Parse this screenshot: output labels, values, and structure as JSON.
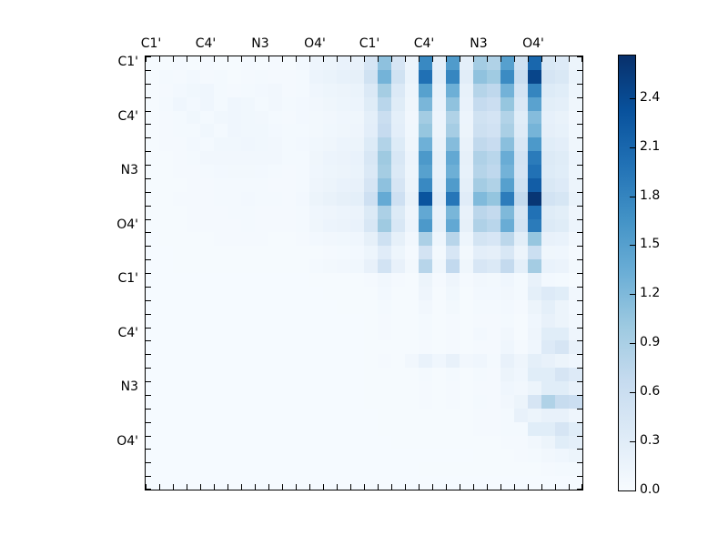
{
  "figure": {
    "background": "#ffffff"
  },
  "chart_data": {
    "type": "heatmap",
    "title": "",
    "xlabel": "",
    "ylabel": "",
    "x_tick_labels": [
      "C1'",
      "C4'",
      "N3",
      "O4'",
      "C1'",
      "C4'",
      "N3",
      "O4'"
    ],
    "y_tick_labels": [
      "C1'",
      "C4'",
      "N3",
      "O4'",
      "C1'",
      "C4'",
      "N3",
      "O4'"
    ],
    "ticks_per_label_group": 4,
    "n_rows": 32,
    "n_cols": 32,
    "vmin": 0.0,
    "vmax": 2.66,
    "grid": false,
    "colormap": {
      "name": "Blues",
      "stops": [
        "#f7fbff",
        "#deebf7",
        "#c6dbef",
        "#9ecae1",
        "#6baed6",
        "#4292c6",
        "#2171b5",
        "#08519c",
        "#08306b"
      ]
    },
    "colorbar": {
      "position": "right",
      "tick_labels": [
        "0.0",
        "0.3",
        "0.6",
        "0.9",
        "1.2",
        "1.5",
        "1.8",
        "2.1",
        "2.4"
      ],
      "tick_values": [
        0.0,
        0.3,
        0.6,
        0.9,
        1.2,
        1.5,
        1.8,
        2.1,
        2.4
      ]
    },
    "values": [
      [
        0.03,
        0.03,
        0.04,
        0.03,
        0.04,
        0.03,
        0.03,
        0.04,
        0.03,
        0.04,
        0.03,
        0.06,
        0.12,
        0.15,
        0.18,
        0.2,
        0.45,
        1.1,
        0.45,
        0.15,
        1.75,
        0.25,
        1.55,
        0.25,
        0.95,
        0.85,
        1.5,
        0.55,
        2.1,
        0.4,
        0.35,
        0.15
      ],
      [
        0.03,
        0.05,
        0.04,
        0.06,
        0.04,
        0.05,
        0.03,
        0.04,
        0.05,
        0.04,
        0.04,
        0.05,
        0.14,
        0.17,
        0.21,
        0.23,
        0.52,
        1.27,
        0.52,
        0.17,
        2.01,
        0.29,
        1.78,
        0.29,
        1.09,
        0.98,
        1.73,
        0.63,
        2.45,
        0.46,
        0.4,
        0.17
      ],
      [
        0.03,
        0.04,
        0.06,
        0.09,
        0.1,
        0.05,
        0.04,
        0.05,
        0.06,
        0.08,
        0.04,
        0.05,
        0.1,
        0.13,
        0.15,
        0.17,
        0.38,
        0.94,
        0.38,
        0.13,
        1.49,
        0.21,
        1.32,
        0.21,
        0.81,
        0.72,
        1.28,
        0.47,
        1.79,
        0.34,
        0.3,
        0.13
      ],
      [
        0.03,
        0.05,
        0.1,
        0.06,
        0.1,
        0.05,
        0.1,
        0.09,
        0.05,
        0.08,
        0.05,
        0.06,
        0.08,
        0.11,
        0.13,
        0.14,
        0.32,
        0.77,
        0.32,
        0.11,
        1.23,
        0.18,
        1.09,
        0.18,
        0.67,
        0.6,
        1.05,
        0.39,
        1.47,
        0.28,
        0.25,
        0.11
      ],
      [
        0.03,
        0.04,
        0.05,
        0.09,
        0.05,
        0.09,
        0.1,
        0.09,
        0.08,
        0.05,
        0.04,
        0.06,
        0.07,
        0.08,
        0.1,
        0.11,
        0.25,
        0.61,
        0.25,
        0.08,
        0.96,
        0.14,
        0.85,
        0.14,
        0.52,
        0.47,
        0.83,
        0.3,
        1.16,
        0.22,
        0.19,
        0.08
      ],
      [
        0.03,
        0.04,
        0.05,
        0.05,
        0.09,
        0.05,
        0.1,
        0.09,
        0.09,
        0.06,
        0.05,
        0.05,
        0.07,
        0.09,
        0.11,
        0.12,
        0.27,
        0.66,
        0.27,
        0.09,
        1.05,
        0.15,
        0.93,
        0.15,
        0.57,
        0.51,
        0.9,
        0.33,
        1.26,
        0.24,
        0.21,
        0.09
      ],
      [
        0.03,
        0.04,
        0.04,
        0.06,
        0.05,
        0.09,
        0.09,
        0.1,
        0.09,
        0.08,
        0.05,
        0.06,
        0.09,
        0.11,
        0.14,
        0.15,
        0.34,
        0.83,
        0.34,
        0.11,
        1.31,
        0.19,
        1.16,
        0.19,
        0.71,
        0.64,
        1.13,
        0.41,
        1.58,
        0.3,
        0.26,
        0.11
      ],
      [
        0.03,
        0.03,
        0.04,
        0.05,
        0.08,
        0.08,
        0.08,
        0.08,
        0.08,
        0.08,
        0.05,
        0.05,
        0.11,
        0.14,
        0.16,
        0.18,
        0.41,
        0.99,
        0.41,
        0.14,
        1.58,
        0.23,
        1.4,
        0.23,
        0.86,
        0.77,
        1.35,
        0.5,
        1.89,
        0.36,
        0.32,
        0.14
      ],
      [
        0.03,
        0.03,
        0.04,
        0.04,
        0.05,
        0.06,
        0.07,
        0.07,
        0.06,
        0.05,
        0.04,
        0.05,
        0.1,
        0.13,
        0.15,
        0.17,
        0.38,
        0.94,
        0.38,
        0.13,
        1.49,
        0.21,
        1.32,
        0.21,
        0.81,
        0.72,
        1.28,
        0.47,
        2.0,
        0.34,
        0.3,
        0.13
      ],
      [
        0.03,
        0.03,
        0.03,
        0.04,
        0.04,
        0.05,
        0.05,
        0.05,
        0.05,
        0.04,
        0.04,
        0.05,
        0.12,
        0.15,
        0.18,
        0.2,
        0.45,
        1.1,
        0.45,
        0.15,
        1.75,
        0.25,
        1.55,
        0.25,
        0.95,
        0.85,
        1.5,
        0.55,
        2.2,
        0.4,
        0.35,
        0.15
      ],
      [
        0.03,
        0.03,
        0.04,
        0.04,
        0.04,
        0.05,
        0.05,
        0.06,
        0.05,
        0.05,
        0.04,
        0.06,
        0.15,
        0.19,
        0.23,
        0.25,
        0.56,
        1.38,
        0.56,
        0.19,
        2.3,
        0.31,
        1.94,
        0.31,
        1.19,
        1.06,
        1.88,
        0.69,
        2.6,
        0.5,
        0.44,
        0.19
      ],
      [
        0.03,
        0.03,
        0.03,
        0.04,
        0.04,
        0.04,
        0.05,
        0.05,
        0.04,
        0.04,
        0.04,
        0.05,
        0.1,
        0.12,
        0.14,
        0.16,
        0.36,
        0.88,
        0.36,
        0.12,
        1.4,
        0.2,
        1.24,
        0.2,
        0.76,
        0.68,
        1.2,
        0.44,
        2.0,
        0.32,
        0.28,
        0.12
      ],
      [
        0.03,
        0.03,
        0.03,
        0.04,
        0.04,
        0.04,
        0.04,
        0.05,
        0.04,
        0.04,
        0.04,
        0.05,
        0.11,
        0.14,
        0.16,
        0.18,
        0.41,
        0.99,
        0.41,
        0.14,
        1.58,
        0.23,
        1.4,
        0.23,
        0.86,
        0.77,
        1.35,
        0.5,
        1.89,
        0.36,
        0.32,
        0.14
      ],
      [
        0.02,
        0.03,
        0.03,
        0.03,
        0.03,
        0.04,
        0.04,
        0.04,
        0.04,
        0.03,
        0.03,
        0.04,
        0.06,
        0.08,
        0.09,
        0.1,
        0.23,
        0.55,
        0.23,
        0.08,
        0.88,
        0.13,
        0.78,
        0.13,
        0.48,
        0.43,
        0.75,
        0.28,
        1.05,
        0.2,
        0.18,
        0.08
      ],
      [
        0.02,
        0.02,
        0.03,
        0.03,
        0.03,
        0.03,
        0.03,
        0.03,
        0.03,
        0.03,
        0.03,
        0.03,
        0.03,
        0.04,
        0.05,
        0.06,
        0.13,
        0.31,
        0.13,
        0.04,
        0.49,
        0.07,
        0.43,
        0.07,
        0.27,
        0.24,
        0.42,
        0.15,
        0.59,
        0.11,
        0.1,
        0.04
      ],
      [
        0.02,
        0.02,
        0.03,
        0.03,
        0.03,
        0.03,
        0.03,
        0.03,
        0.03,
        0.03,
        0.03,
        0.03,
        0.05,
        0.07,
        0.08,
        0.09,
        0.2,
        0.5,
        0.2,
        0.07,
        0.79,
        0.11,
        0.7,
        0.11,
        0.43,
        0.38,
        0.68,
        0.25,
        0.95,
        0.18,
        0.16,
        0.07
      ],
      [
        0.02,
        0.02,
        0.02,
        0.02,
        0.02,
        0.02,
        0.02,
        0.02,
        0.02,
        0.02,
        0.02,
        0.02,
        0.03,
        0.03,
        0.03,
        0.03,
        0.04,
        0.08,
        0.04,
        0.03,
        0.15,
        0.04,
        0.12,
        0.04,
        0.08,
        0.07,
        0.1,
        0.05,
        0.2,
        0.06,
        0.05,
        0.03
      ],
      [
        0.02,
        0.02,
        0.02,
        0.02,
        0.02,
        0.02,
        0.02,
        0.02,
        0.02,
        0.02,
        0.02,
        0.02,
        0.02,
        0.03,
        0.03,
        0.03,
        0.03,
        0.06,
        0.03,
        0.03,
        0.12,
        0.03,
        0.09,
        0.03,
        0.06,
        0.06,
        0.08,
        0.05,
        0.25,
        0.35,
        0.3,
        0.08
      ],
      [
        0.02,
        0.02,
        0.02,
        0.02,
        0.02,
        0.02,
        0.02,
        0.02,
        0.02,
        0.02,
        0.02,
        0.02,
        0.02,
        0.02,
        0.03,
        0.03,
        0.03,
        0.05,
        0.03,
        0.03,
        0.08,
        0.03,
        0.07,
        0.03,
        0.05,
        0.05,
        0.06,
        0.04,
        0.15,
        0.25,
        0.15,
        0.06
      ],
      [
        0.02,
        0.02,
        0.02,
        0.02,
        0.02,
        0.02,
        0.02,
        0.02,
        0.02,
        0.02,
        0.02,
        0.02,
        0.02,
        0.02,
        0.02,
        0.02,
        0.03,
        0.04,
        0.03,
        0.03,
        0.05,
        0.03,
        0.04,
        0.03,
        0.04,
        0.04,
        0.05,
        0.03,
        0.1,
        0.2,
        0.15,
        0.08
      ],
      [
        0.02,
        0.02,
        0.02,
        0.02,
        0.02,
        0.02,
        0.02,
        0.02,
        0.02,
        0.02,
        0.02,
        0.02,
        0.02,
        0.02,
        0.02,
        0.02,
        0.03,
        0.04,
        0.03,
        0.03,
        0.05,
        0.03,
        0.04,
        0.03,
        0.06,
        0.04,
        0.08,
        0.03,
        0.12,
        0.3,
        0.3,
        0.12
      ],
      [
        0.02,
        0.02,
        0.02,
        0.02,
        0.02,
        0.02,
        0.02,
        0.02,
        0.02,
        0.02,
        0.02,
        0.02,
        0.02,
        0.02,
        0.02,
        0.02,
        0.03,
        0.03,
        0.03,
        0.03,
        0.04,
        0.03,
        0.04,
        0.03,
        0.04,
        0.04,
        0.1,
        0.04,
        0.1,
        0.35,
        0.45,
        0.2
      ],
      [
        0.02,
        0.02,
        0.02,
        0.02,
        0.02,
        0.02,
        0.02,
        0.02,
        0.02,
        0.02,
        0.02,
        0.02,
        0.02,
        0.02,
        0.02,
        0.02,
        0.03,
        0.04,
        0.03,
        0.08,
        0.18,
        0.1,
        0.2,
        0.08,
        0.1,
        0.05,
        0.2,
        0.12,
        0.25,
        0.2,
        0.15,
        0.1
      ],
      [
        0.02,
        0.02,
        0.02,
        0.02,
        0.02,
        0.02,
        0.02,
        0.02,
        0.02,
        0.02,
        0.02,
        0.02,
        0.02,
        0.02,
        0.02,
        0.02,
        0.03,
        0.03,
        0.03,
        0.03,
        0.05,
        0.03,
        0.05,
        0.03,
        0.05,
        0.04,
        0.15,
        0.1,
        0.3,
        0.3,
        0.45,
        0.35
      ],
      [
        0.02,
        0.02,
        0.02,
        0.02,
        0.02,
        0.02,
        0.02,
        0.02,
        0.02,
        0.02,
        0.02,
        0.02,
        0.02,
        0.02,
        0.02,
        0.02,
        0.03,
        0.03,
        0.03,
        0.03,
        0.04,
        0.03,
        0.04,
        0.03,
        0.04,
        0.04,
        0.1,
        0.08,
        0.15,
        0.3,
        0.3,
        0.2
      ],
      [
        0.02,
        0.02,
        0.02,
        0.02,
        0.02,
        0.02,
        0.02,
        0.02,
        0.02,
        0.02,
        0.02,
        0.02,
        0.02,
        0.02,
        0.02,
        0.02,
        0.03,
        0.03,
        0.03,
        0.03,
        0.04,
        0.03,
        0.04,
        0.03,
        0.05,
        0.04,
        0.08,
        0.15,
        0.45,
        0.85,
        0.65,
        0.6
      ],
      [
        0.02,
        0.02,
        0.02,
        0.02,
        0.02,
        0.02,
        0.02,
        0.02,
        0.02,
        0.02,
        0.02,
        0.02,
        0.02,
        0.02,
        0.02,
        0.02,
        0.02,
        0.03,
        0.03,
        0.03,
        0.03,
        0.03,
        0.03,
        0.03,
        0.04,
        0.04,
        0.05,
        0.2,
        0.15,
        0.2,
        0.2,
        0.12
      ],
      [
        0.02,
        0.02,
        0.02,
        0.02,
        0.02,
        0.02,
        0.02,
        0.02,
        0.02,
        0.02,
        0.02,
        0.02,
        0.02,
        0.02,
        0.02,
        0.02,
        0.02,
        0.03,
        0.03,
        0.03,
        0.03,
        0.03,
        0.03,
        0.03,
        0.04,
        0.04,
        0.05,
        0.05,
        0.3,
        0.3,
        0.45,
        0.3
      ],
      [
        0.02,
        0.02,
        0.02,
        0.02,
        0.02,
        0.02,
        0.02,
        0.02,
        0.02,
        0.02,
        0.02,
        0.02,
        0.02,
        0.02,
        0.02,
        0.02,
        0.02,
        0.02,
        0.03,
        0.03,
        0.03,
        0.03,
        0.03,
        0.03,
        0.03,
        0.03,
        0.04,
        0.04,
        0.08,
        0.15,
        0.3,
        0.25
      ],
      [
        0.02,
        0.02,
        0.02,
        0.02,
        0.02,
        0.02,
        0.02,
        0.02,
        0.02,
        0.02,
        0.02,
        0.02,
        0.02,
        0.02,
        0.02,
        0.02,
        0.02,
        0.02,
        0.02,
        0.02,
        0.02,
        0.02,
        0.02,
        0.02,
        0.03,
        0.03,
        0.03,
        0.04,
        0.05,
        0.08,
        0.1,
        0.15
      ],
      [
        0.02,
        0.02,
        0.02,
        0.02,
        0.02,
        0.02,
        0.02,
        0.02,
        0.02,
        0.02,
        0.02,
        0.02,
        0.02,
        0.02,
        0.02,
        0.02,
        0.02,
        0.02,
        0.02,
        0.02,
        0.03,
        0.03,
        0.03,
        0.03,
        0.03,
        0.03,
        0.03,
        0.03,
        0.03,
        0.04,
        0.05,
        0.05
      ],
      [
        0.02,
        0.02,
        0.02,
        0.02,
        0.02,
        0.02,
        0.02,
        0.02,
        0.02,
        0.02,
        0.02,
        0.02,
        0.02,
        0.02,
        0.02,
        0.02,
        0.02,
        0.02,
        0.02,
        0.02,
        0.02,
        0.02,
        0.02,
        0.02,
        0.02,
        0.02,
        0.02,
        0.02,
        0.02,
        0.02,
        0.02,
        0.02
      ]
    ]
  }
}
